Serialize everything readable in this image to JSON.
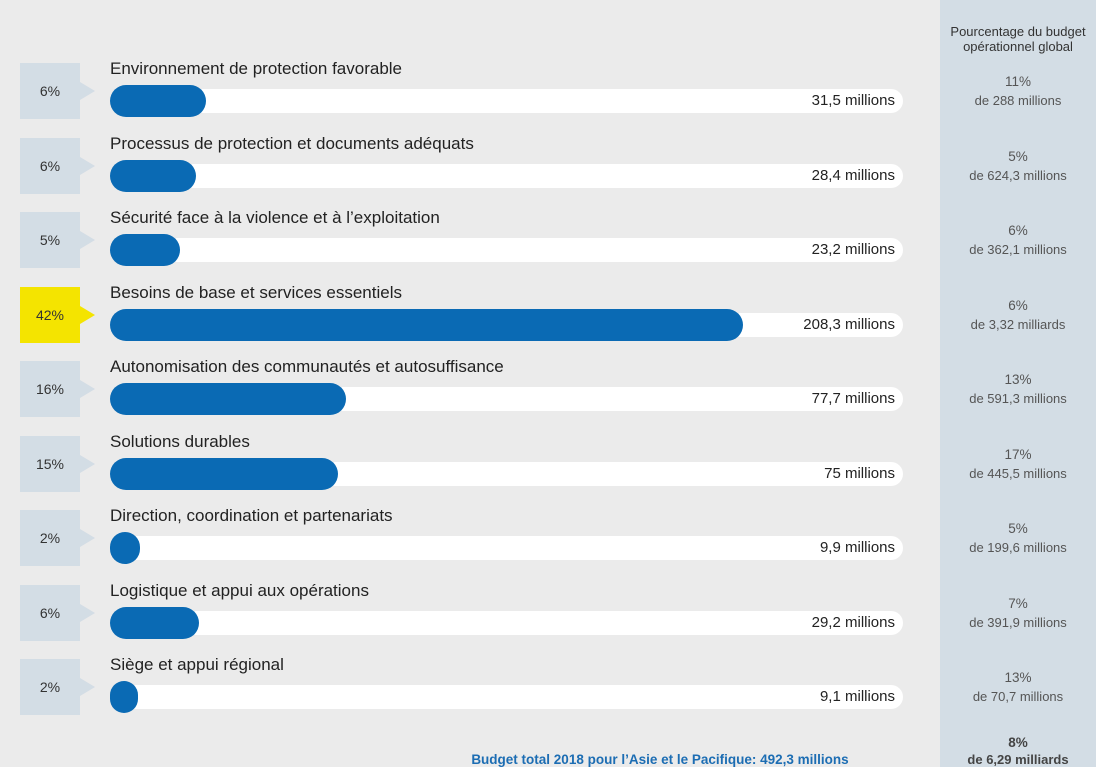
{
  "colors": {
    "background": "#ebebeb",
    "bar": "#0a6ab4",
    "track": "#ffffff",
    "share_box": "#d3dde5",
    "share_box_highlight": "#f4e400",
    "global_column": "#d3dde5",
    "footer_text": "#1c6db3"
  },
  "chart_data": {
    "type": "bar",
    "horizontal": true,
    "categories": [
      "Environnement de protection favorable",
      "Processus de protection et documents adéquats",
      "Sécurité face à la violence et à l’exploitation",
      "Besoins de base et services essentiels",
      "Autonomisation des communautés et autosuffisance",
      "Solutions durables",
      "Direction, coordination et partenariats",
      "Logistique et appui aux opérations",
      "Siège et appui régional"
    ],
    "values": [
      31.5,
      28.4,
      23.2,
      208.3,
      77.7,
      75,
      9.9,
      29.2,
      9.1
    ],
    "value_labels": [
      "31,5 millions",
      "28,4 millions",
      "23,2 millions",
      "208,3 millions",
      "77,7 millions",
      "75 millions",
      "9,9 millions",
      "29,2 millions",
      "9,1 millions"
    ],
    "share_labels": [
      "6%",
      "6%",
      "5%",
      "42%",
      "16%",
      "15%",
      "2%",
      "6%",
      "2%"
    ],
    "highlighted": [
      false,
      false,
      false,
      true,
      false,
      false,
      false,
      false,
      false
    ],
    "xlim": [
      0,
      261
    ],
    "grid": false
  },
  "global_column": {
    "header": [
      "Pourcentage du budget",
      "opérationnel global"
    ],
    "items": [
      {
        "percent": "11%",
        "of": "de 288 millions"
      },
      {
        "percent": "5%",
        "of": "de 624,3 millions"
      },
      {
        "percent": "6%",
        "of": "de 362,1 millions"
      },
      {
        "percent": "6%",
        "of": "de 3,32 milliards"
      },
      {
        "percent": "13%",
        "of": "de 591,3 millions"
      },
      {
        "percent": "17%",
        "of": "de 445,5 millions"
      },
      {
        "percent": "5%",
        "of": "de 199,6 millions"
      },
      {
        "percent": "7%",
        "of": "de 391,9 millions"
      },
      {
        "percent": "13%",
        "of": "de 70,7 millions"
      }
    ],
    "total": {
      "percent": "8%",
      "of": "de 6,29 milliards"
    }
  },
  "footer": {
    "total_text": "Budget total 2018 pour l’Asie et le Pacifique: 492,3 millions"
  }
}
